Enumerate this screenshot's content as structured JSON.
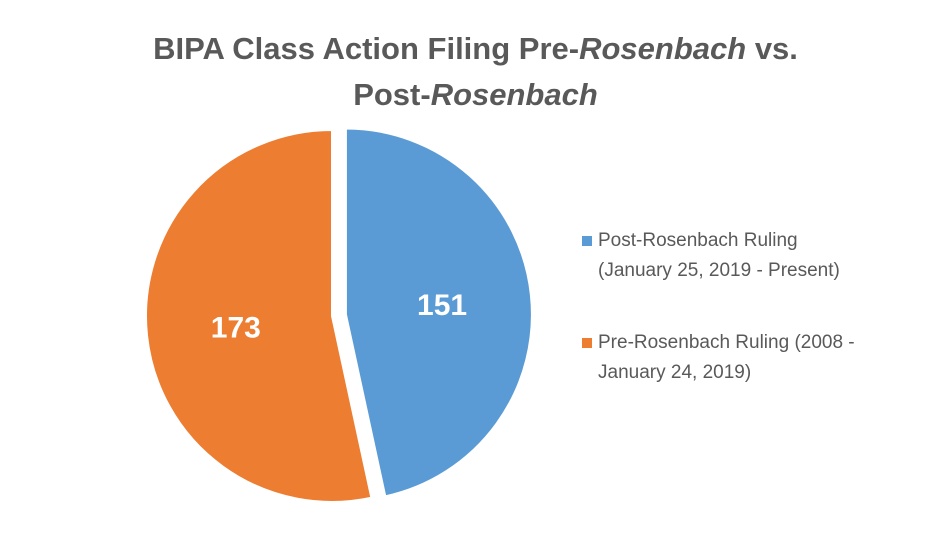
{
  "chart_data": {
    "type": "pie",
    "title": {
      "parts": [
        {
          "text": "BIPA Class Action Filing Pre-",
          "italic": false
        },
        {
          "text": "Rosenbach",
          "italic": true
        },
        {
          "text": " vs.",
          "italic": false
        },
        {
          "text": "\n",
          "italic": false
        },
        {
          "text": "Post-",
          "italic": false
        },
        {
          "text": "Rosenbach",
          "italic": true
        }
      ]
    },
    "slices": [
      {
        "name": "Post-Rosenbach Ruling\n(January 25, 2019 - Present)",
        "value": 151,
        "label": "151",
        "color": "#5B9BD5",
        "exploded": true
      },
      {
        "name": "Pre-Rosenbach Ruling (2008 -\nJanuary 24, 2019)",
        "value": 173,
        "label": "173",
        "color": "#ED7D31",
        "exploded": false
      }
    ],
    "start_angle": "12 o'clock",
    "direction": "clockwise",
    "legend_position": "right"
  }
}
